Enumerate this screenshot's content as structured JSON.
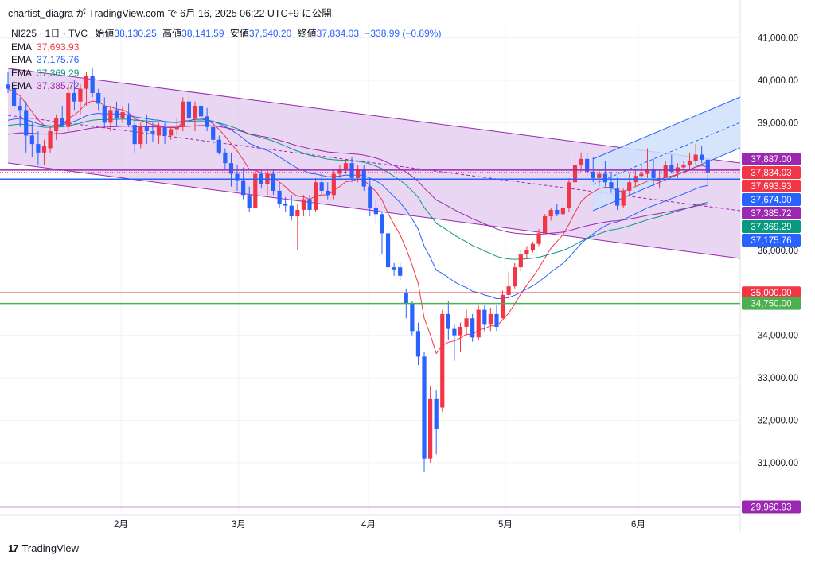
{
  "header": {
    "text": "chartist_diagra が TradingView.com で 6月 16, 2025 06:22 UTC+9 に公開"
  },
  "legend": {
    "symbol": "NI225 · 1日 · TVC",
    "open_label": "始値",
    "open": "38,130.25",
    "high_label": "高値",
    "high": "38,141.59",
    "low_label": "安値",
    "low": "37,540.20",
    "close_label": "終値",
    "close": "37,834.03",
    "change": "−338.99 (−0.89%)",
    "ema": [
      {
        "label": "EMA",
        "value": "37,693.93",
        "color": "#f23645"
      },
      {
        "label": "EMA",
        "value": "37,175.76",
        "color": "#2962ff"
      },
      {
        "label": "EMA",
        "value": "37,369.29",
        "color": "#089981"
      },
      {
        "label": "EMA",
        "value": "37,385.72",
        "color": "#9c27b0"
      }
    ]
  },
  "footer": {
    "brand": "TradingView"
  },
  "colors": {
    "up": "#f23645",
    "down": "#2962ff",
    "grid": "#f0f3fa",
    "channel": "#9c27b0",
    "channel_fill": "#e1c8ef",
    "forecast_fill": "#cfe0fb"
  },
  "chart_data": {
    "type": "candlestick",
    "symbol": "NI225",
    "interval": "1D",
    "ylim": [
      29800,
      41600
    ],
    "y_ticks": [
      "41,000.00",
      "40,000.00",
      "39,000.00",
      "36,000.00",
      "34,000.00",
      "33,000.00",
      "32,000.00",
      "31,000.00"
    ],
    "y_tick_values": [
      41000,
      40000,
      39000,
      36000,
      34000,
      33000,
      32000,
      31000
    ],
    "x_labels": [
      {
        "label": "2月",
        "date": "2025-02-01"
      },
      {
        "label": "3月",
        "date": "2025-03-01"
      },
      {
        "label": "4月",
        "date": "2025-04-01"
      },
      {
        "label": "5月",
        "date": "2025-05-01"
      },
      {
        "label": "6月",
        "date": "2025-06-01"
      }
    ],
    "candles": [
      [
        39900,
        40200,
        39700,
        39800
      ],
      [
        39800,
        40000,
        39250,
        39400
      ],
      [
        39400,
        39600,
        38900,
        39300
      ],
      [
        39300,
        39500,
        38300,
        38700
      ],
      [
        38700,
        39000,
        38200,
        38500
      ],
      [
        38500,
        38800,
        38000,
        38300
      ],
      [
        38300,
        38600,
        38000,
        38450
      ],
      [
        38400,
        38900,
        38300,
        38800
      ],
      [
        38800,
        39200,
        38600,
        39100
      ],
      [
        39100,
        39400,
        38900,
        38950
      ],
      [
        38900,
        39900,
        38800,
        39700
      ],
      [
        39700,
        40000,
        39300,
        39500
      ],
      [
        39500,
        39900,
        39200,
        39800
      ],
      [
        39800,
        40200,
        39400,
        40100
      ],
      [
        40100,
        40300,
        39600,
        39700
      ],
      [
        39700,
        39800,
        39300,
        39450
      ],
      [
        39400,
        39600,
        38900,
        39000
      ],
      [
        39000,
        39400,
        38800,
        39300
      ],
      [
        39300,
        39500,
        38900,
        39100
      ],
      [
        39100,
        39400,
        39000,
        39250
      ],
      [
        39200,
        39450,
        38900,
        38950
      ],
      [
        38950,
        39100,
        38300,
        38500
      ],
      [
        38500,
        39000,
        38400,
        38900
      ],
      [
        38900,
        39200,
        38500,
        38800
      ],
      [
        38800,
        39000,
        38550,
        38750
      ],
      [
        38700,
        39000,
        38500,
        38900
      ],
      [
        38900,
        39000,
        38500,
        38700
      ],
      [
        38700,
        38900,
        38600,
        38850
      ],
      [
        38850,
        39100,
        38700,
        38900
      ],
      [
        38900,
        39600,
        38800,
        39500
      ],
      [
        39500,
        39700,
        39000,
        39100
      ],
      [
        39100,
        39500,
        38800,
        39400
      ],
      [
        39400,
        39600,
        39000,
        39150
      ],
      [
        39150,
        39350,
        38800,
        38900
      ],
      [
        38900,
        39000,
        38500,
        38600
      ],
      [
        38600,
        38700,
        38250,
        38300
      ],
      [
        38300,
        38400,
        37900,
        38050
      ],
      [
        38050,
        38300,
        37500,
        37800
      ],
      [
        37800,
        38000,
        37400,
        37650
      ],
      [
        37650,
        37950,
        37200,
        37300
      ],
      [
        37300,
        37500,
        36900,
        37000
      ],
      [
        37000,
        37900,
        37000,
        37800
      ],
      [
        37800,
        37900,
        37450,
        37550
      ],
      [
        37550,
        37900,
        37300,
        37800
      ],
      [
        37800,
        37900,
        37300,
        37400
      ],
      [
        37400,
        37600,
        37000,
        37100
      ],
      [
        37100,
        37250,
        36900,
        37050
      ],
      [
        37050,
        37300,
        36700,
        36800
      ],
      [
        36800,
        37100,
        36000,
        36950
      ],
      [
        36950,
        37300,
        36800,
        37200
      ],
      [
        37200,
        37300,
        36800,
        36950
      ],
      [
        36950,
        37700,
        36900,
        37600
      ],
      [
        37600,
        37800,
        37300,
        37400
      ],
      [
        37400,
        37600,
        37200,
        37300
      ],
      [
        37300,
        37900,
        37200,
        37800
      ],
      [
        37800,
        38000,
        37700,
        37900
      ],
      [
        37900,
        38150,
        37800,
        38050
      ],
      [
        38050,
        38200,
        37600,
        37700
      ],
      [
        37700,
        38000,
        37600,
        37900
      ],
      [
        37900,
        38000,
        37400,
        37500
      ],
      [
        37500,
        37700,
        36800,
        37000
      ],
      [
        37000,
        37200,
        36600,
        36850
      ],
      [
        36850,
        36900,
        35900,
        36400
      ],
      [
        36400,
        36500,
        35500,
        35600
      ],
      [
        35600,
        35700,
        35400,
        35550
      ],
      [
        35600,
        35700,
        35300,
        35400
      ],
      [
        35000,
        35100,
        34400,
        34750
      ],
      [
        34750,
        34800,
        34000,
        34100
      ],
      [
        34100,
        34300,
        33300,
        33500
      ],
      [
        33500,
        33600,
        30800,
        31100
      ],
      [
        31100,
        32800,
        31000,
        32500
      ],
      [
        32500,
        32700,
        31200,
        31800
      ],
      [
        32300,
        34600,
        32200,
        34500
      ],
      [
        34500,
        34800,
        33900,
        34150
      ],
      [
        34150,
        34250,
        33400,
        34000
      ],
      [
        34000,
        34300,
        33600,
        34200
      ],
      [
        34200,
        34600,
        34000,
        34400
      ],
      [
        34400,
        34500,
        33850,
        33950
      ],
      [
        33950,
        34700,
        33900,
        34600
      ],
      [
        34600,
        34700,
        34100,
        34250
      ],
      [
        34250,
        34650,
        34100,
        34500
      ],
      [
        34500,
        34700,
        34100,
        34200
      ],
      [
        34400,
        35050,
        34400,
        34950
      ],
      [
        34950,
        35500,
        34850,
        35150
      ],
      [
        35150,
        35700,
        35100,
        35600
      ],
      [
        35600,
        36000,
        35500,
        35900
      ],
      [
        35900,
        36100,
        35800,
        36000
      ],
      [
        36000,
        36200,
        35950,
        36150
      ],
      [
        36150,
        36500,
        36100,
        36400
      ],
      [
        36400,
        36850,
        36400,
        36800
      ],
      [
        36800,
        37000,
        36700,
        36950
      ],
      [
        36950,
        37100,
        36800,
        36850
      ],
      [
        36850,
        37050,
        36800,
        37000
      ],
      [
        37000,
        37700,
        36900,
        37600
      ],
      [
        37600,
        38450,
        37500,
        38000
      ],
      [
        38000,
        38300,
        37850,
        38150
      ],
      [
        38150,
        38300,
        37750,
        37850
      ],
      [
        37850,
        38200,
        37600,
        37700
      ],
      [
        37700,
        37900,
        37500,
        37800
      ],
      [
        37800,
        38100,
        37500,
        37600
      ],
      [
        37600,
        37850,
        37350,
        37450
      ],
      [
        37450,
        37700,
        36950,
        37050
      ],
      [
        37050,
        37450,
        37000,
        37400
      ],
      [
        37400,
        37800,
        37300,
        37600
      ],
      [
        37600,
        37900,
        37500,
        37750
      ],
      [
        37750,
        38000,
        37700,
        37800
      ],
      [
        37800,
        38400,
        37700,
        37900
      ],
      [
        37900,
        38150,
        37500,
        37700
      ],
      [
        37700,
        37900,
        37450,
        37700
      ],
      [
        37700,
        38100,
        37700,
        38000
      ],
      [
        38000,
        38250,
        37800,
        37850
      ],
      [
        37850,
        38050,
        37700,
        37950
      ],
      [
        37950,
        38100,
        37850,
        38000
      ],
      [
        38000,
        38300,
        37900,
        38100
      ],
      [
        38100,
        38500,
        38000,
        38250
      ],
      [
        38250,
        38450,
        38050,
        38130
      ],
      [
        38130,
        38142,
        37540,
        37834
      ]
    ],
    "ema_values": {
      "EMA1": 37693.93,
      "EMA2": 37175.76,
      "EMA3": 37369.29,
      "EMA4": 37385.72
    },
    "horizontal_levels": [
      {
        "value": 35000.0,
        "label": "35,000.00",
        "color": "#f23645"
      },
      {
        "value": 34750.0,
        "label": "34,750.00",
        "color": "#4caf50"
      },
      {
        "value": 29960.93,
        "label": "29,960.93",
        "color": "#9c27b0"
      },
      {
        "value": 37674.0,
        "label": "37,674.00",
        "color": "#2962ff"
      },
      {
        "value": 37887.0,
        "label": "37,887.00",
        "color": "#9c27b0"
      }
    ],
    "price_tags": [
      {
        "label": "37,887.00",
        "color": "#9c27b0"
      },
      {
        "label": "37,834.03",
        "color": "#f23645"
      },
      {
        "label": "37,693.93",
        "color": "#f23645"
      },
      {
        "label": "37,674.00",
        "color": "#2962ff"
      },
      {
        "label": "37,385.72",
        "color": "#9c27b0"
      },
      {
        "label": "37,369.29",
        "color": "#089981"
      },
      {
        "label": "37,175.76",
        "color": "#2962ff"
      }
    ]
  }
}
